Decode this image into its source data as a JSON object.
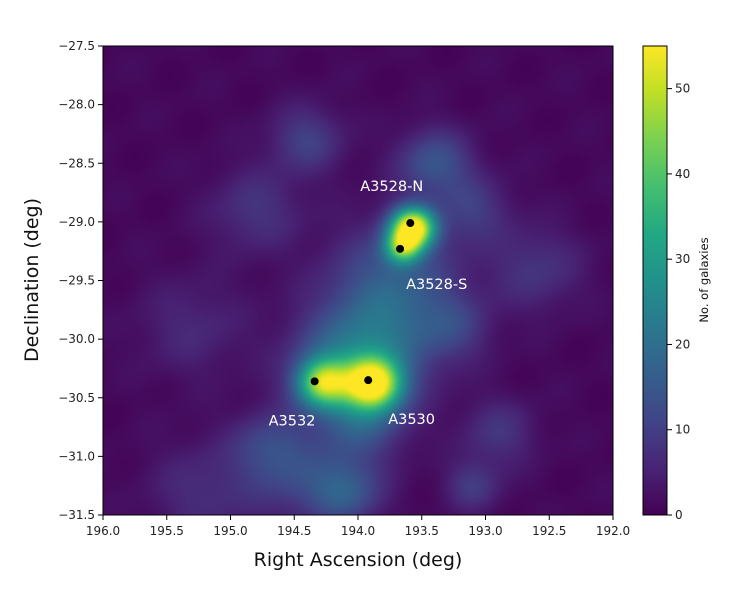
{
  "chart_data": {
    "type": "heatmap",
    "title": "",
    "xlabel": "Right Ascension (deg)",
    "ylabel": "Declination (deg)",
    "xlim": [
      196.0,
      192.0
    ],
    "ylim": [
      -31.5,
      -27.5
    ],
    "x_ticks": [
      "196.0",
      "195.5",
      "195.0",
      "194.5",
      "194.0",
      "193.5",
      "193.0",
      "192.5",
      "192.0"
    ],
    "y_ticks": [
      "−27.5",
      "−28.0",
      "−28.5",
      "−29.0",
      "−29.5",
      "−30.0",
      "−30.5",
      "−31.0",
      "−31.5"
    ],
    "colorbar": {
      "label": "No. of galaxies",
      "range": [
        0,
        55
      ],
      "ticks": [
        "0",
        "10",
        "20",
        "30",
        "40",
        "50"
      ],
      "colormap": "viridis"
    },
    "density_peaks": [
      {
        "ra": 193.57,
        "dec": -29.05,
        "value": 55,
        "sigma": 0.12
      },
      {
        "ra": 193.65,
        "dec": -29.22,
        "value": 30,
        "sigma": 0.1
      },
      {
        "ra": 193.88,
        "dec": -30.38,
        "value": 46,
        "sigma": 0.15
      },
      {
        "ra": 194.28,
        "dec": -30.37,
        "value": 36,
        "sigma": 0.14
      },
      {
        "ra": 194.08,
        "dec": -30.25,
        "value": 14,
        "sigma": 0.3
      },
      {
        "ra": 193.7,
        "dec": -29.5,
        "value": 12,
        "sigma": 0.35
      },
      {
        "ra": 193.85,
        "dec": -30.0,
        "value": 11,
        "sigma": 0.35
      },
      {
        "ra": 194.0,
        "dec": -30.7,
        "value": 12,
        "sigma": 0.25
      },
      {
        "ra": 194.1,
        "dec": -31.3,
        "value": 14,
        "sigma": 0.2
      },
      {
        "ra": 194.5,
        "dec": -31.2,
        "value": 8,
        "sigma": 0.25
      },
      {
        "ra": 193.4,
        "dec": -28.5,
        "value": 13,
        "sigma": 0.2
      },
      {
        "ra": 194.4,
        "dec": -28.3,
        "value": 9,
        "sigma": 0.2
      },
      {
        "ra": 194.8,
        "dec": -28.9,
        "value": 7,
        "sigma": 0.25
      },
      {
        "ra": 193.1,
        "dec": -28.9,
        "value": 8,
        "sigma": 0.2
      },
      {
        "ra": 192.6,
        "dec": -29.4,
        "value": 7,
        "sigma": 0.25
      },
      {
        "ra": 195.2,
        "dec": -31.3,
        "value": 6,
        "sigma": 0.3
      },
      {
        "ra": 192.9,
        "dec": -30.8,
        "value": 7,
        "sigma": 0.2
      },
      {
        "ra": 193.1,
        "dec": -31.25,
        "value": 8,
        "sigma": 0.15
      },
      {
        "ra": 194.7,
        "dec": -30.9,
        "value": 9,
        "sigma": 0.2
      },
      {
        "ra": 195.3,
        "dec": -29.9,
        "value": 5,
        "sigma": 0.3
      },
      {
        "ra": 193.25,
        "dec": -29.9,
        "value": 7,
        "sigma": 0.2
      }
    ],
    "clusters": [
      {
        "name": "A3528-N",
        "ra": 193.59,
        "dec": -29.01
      },
      {
        "name": "A3528-S",
        "ra": 193.67,
        "dec": -29.23
      },
      {
        "name": "A3532",
        "ra": 194.34,
        "dec": -30.36
      },
      {
        "name": "A3530",
        "ra": 193.92,
        "dec": -30.35
      }
    ]
  }
}
